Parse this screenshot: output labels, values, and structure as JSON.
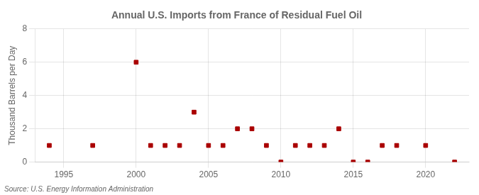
{
  "chart_data": {
    "type": "scatter",
    "title": "Annual U.S. Imports from France of Residual Fuel Oil",
    "y_label": "Thousand Barrels per Day",
    "annotations": [
      "Source: U.S. Energy Information Administration"
    ],
    "x": [
      1994,
      1997,
      2000,
      2001,
      2002,
      2003,
      2004,
      2005,
      2006,
      2007,
      2008,
      2009,
      2010,
      2011,
      2012,
      2013,
      2014,
      2015,
      2016,
      2017,
      2018,
      2020,
      2022
    ],
    "values": [
      1,
      1,
      6,
      1,
      1,
      1,
      3,
      1,
      1,
      2,
      2,
      1,
      0,
      1,
      1,
      1,
      2,
      0,
      0,
      1,
      1,
      1,
      0
    ],
    "color": "#aa0000",
    "marker": "square",
    "xlim": [
      1993,
      2023
    ],
    "xticks": [
      1995,
      2000,
      2005,
      2010,
      2015,
      2020
    ],
    "ylim": [
      0,
      8
    ],
    "yticks": [
      0,
      2,
      4,
      6,
      8
    ],
    "grid": true
  }
}
